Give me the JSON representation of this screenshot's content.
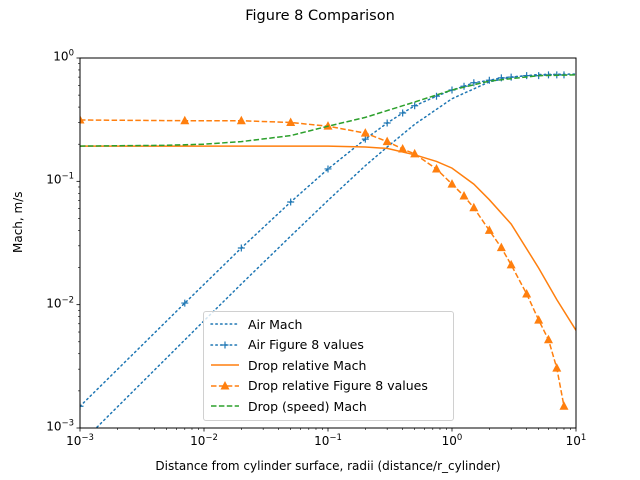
{
  "chart_data": {
    "type": "line",
    "title": "Figure 8 Comparison",
    "xlabel": "Distance from cylinder surface, radii (distance/r_cylinder)",
    "ylabel": "Mach, m/s",
    "xscale": "log",
    "yscale": "log",
    "xlim": [
      0.001,
      10
    ],
    "ylim": [
      0.001,
      1
    ],
    "xtick_exponents": [
      -3,
      -2,
      -1,
      0,
      1
    ],
    "ytick_exponents": [
      -3,
      -2,
      -1,
      0
    ],
    "grid": false,
    "legend_position": "lower-center",
    "series": [
      {
        "name": "Air Mach",
        "color": "#1f77b4",
        "style": "dotted",
        "marker": "none",
        "x": [
          0.001,
          0.002,
          0.005,
          0.01,
          0.02,
          0.05,
          0.1,
          0.2,
          0.3,
          0.5,
          1,
          2,
          3,
          5,
          10
        ],
        "y": [
          0.00074,
          0.00148,
          0.0037,
          0.0074,
          0.0147,
          0.036,
          0.07,
          0.134,
          0.19,
          0.29,
          0.468,
          0.64,
          0.7,
          0.735,
          0.74
        ]
      },
      {
        "name": "Air Figure 8 values",
        "color": "#1f77b4",
        "style": "dotted",
        "marker": "plus",
        "x": [
          0.001,
          0.007,
          0.02,
          0.05,
          0.1,
          0.2,
          0.3,
          0.4,
          0.5,
          0.75,
          1,
          1.25,
          1.5,
          2,
          2.5,
          3,
          4,
          5,
          6,
          7,
          8
        ],
        "y": [
          0.0015,
          0.0103,
          0.0288,
          0.068,
          0.126,
          0.22,
          0.297,
          0.358,
          0.41,
          0.49,
          0.55,
          0.59,
          0.63,
          0.66,
          0.69,
          0.7,
          0.72,
          0.72,
          0.73,
          0.73,
          0.73
        ]
      },
      {
        "name": "Drop relative Mach",
        "color": "#ff7f0e",
        "style": "solid",
        "marker": "none",
        "x": [
          0.001,
          0.01,
          0.05,
          0.1,
          0.2,
          0.3,
          0.5,
          0.75,
          1,
          1.5,
          2,
          3,
          5,
          7,
          10
        ],
        "y": [
          0.193,
          0.193,
          0.193,
          0.193,
          0.19,
          0.185,
          0.164,
          0.145,
          0.128,
          0.095,
          0.071,
          0.045,
          0.0198,
          0.011,
          0.0062
        ]
      },
      {
        "name": "Drop relative Figure 8 values",
        "color": "#ff7f0e",
        "style": "dashed",
        "marker": "triangle",
        "x": [
          0.001,
          0.007,
          0.02,
          0.05,
          0.1,
          0.2,
          0.3,
          0.4,
          0.5,
          0.75,
          1,
          1.25,
          1.5,
          2,
          2.5,
          3,
          4,
          5,
          6,
          7,
          8
        ],
        "y": [
          0.314,
          0.31,
          0.31,
          0.3,
          0.28,
          0.246,
          0.21,
          0.183,
          0.167,
          0.126,
          0.095,
          0.076,
          0.061,
          0.04,
          0.029,
          0.021,
          0.0122,
          0.0075,
          0.0052,
          0.00306,
          0.0015
        ]
      },
      {
        "name": "Drop (speed) Mach",
        "color": "#2ca02c",
        "style": "dashed",
        "marker": "none",
        "x": [
          0.001,
          0.005,
          0.01,
          0.02,
          0.05,
          0.1,
          0.2,
          0.5,
          1,
          2,
          5,
          10
        ],
        "y": [
          0.193,
          0.196,
          0.2,
          0.21,
          0.235,
          0.28,
          0.33,
          0.44,
          0.55,
          0.65,
          0.72,
          0.73
        ]
      }
    ]
  }
}
